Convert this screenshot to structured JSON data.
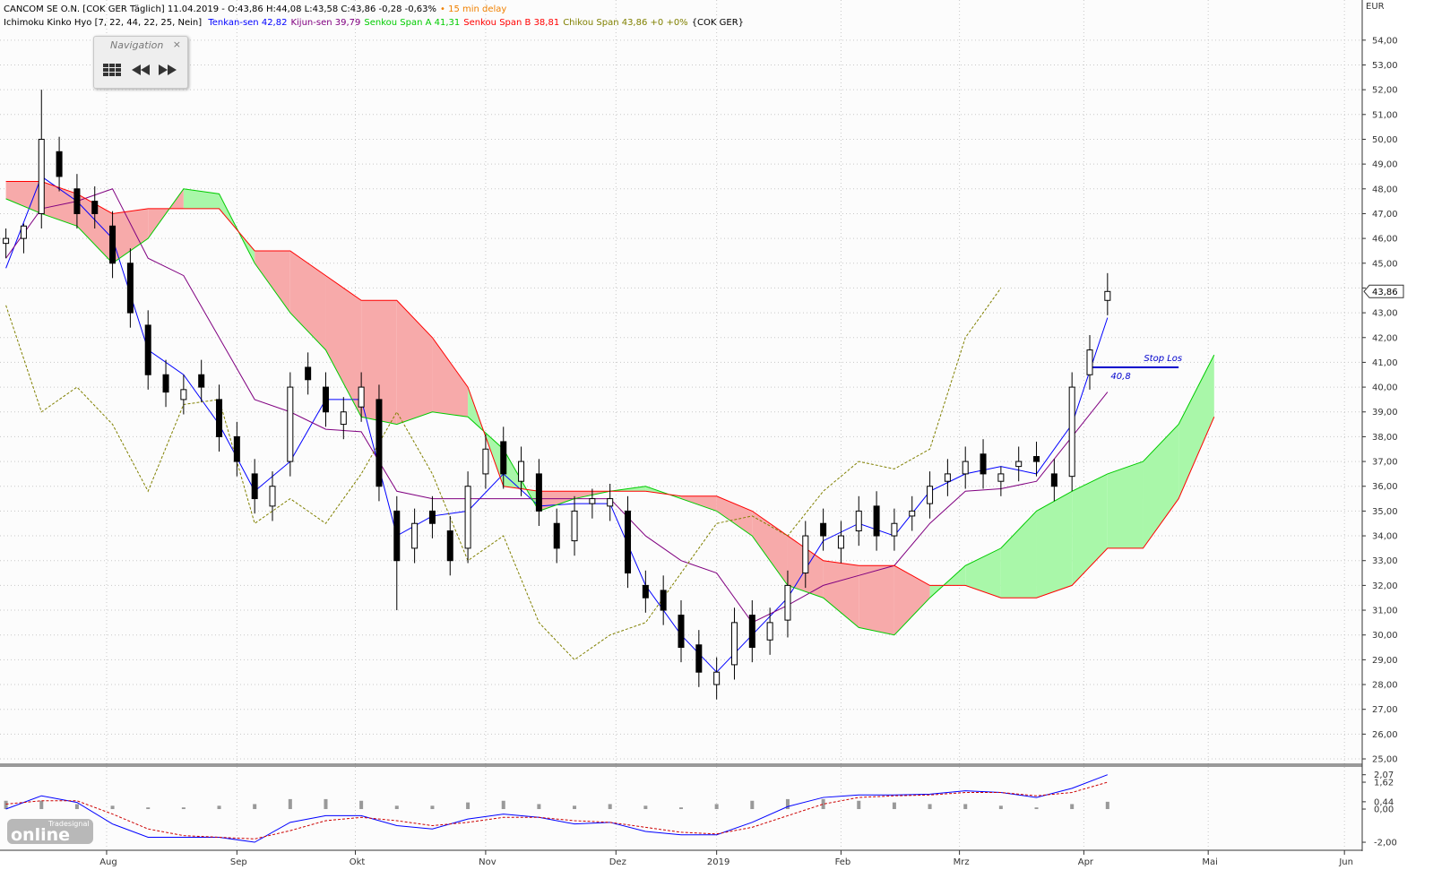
{
  "header": {
    "title": "CANCOM SE O.N. [COK GER Täglich] 11.04.2019 - O:43,86 H:44,08 L:43,58 C:43,86 -0,28 -0,63%",
    "delay": "• 15 min delay",
    "indicator": "Ichimoku Kinko Hyo [7, 22, 44, 22, 25, Nein]",
    "suffix": "{COK GER}"
  },
  "navigation": {
    "title": "Navigation"
  },
  "logo": {
    "small": "Tradesignal",
    "big": "online"
  },
  "chart_data": [
    {
      "type": "candlestick",
      "y_unit": "EUR",
      "x": [
        0,
        3,
        6,
        9,
        12,
        15,
        18,
        21,
        24,
        27,
        30,
        33,
        36,
        39,
        42,
        45,
        48,
        51,
        54,
        57,
        60,
        63,
        66,
        69,
        72,
        75,
        78,
        81,
        84,
        87,
        90,
        93,
        96,
        99,
        102,
        105,
        108,
        111,
        114,
        117,
        120,
        123,
        126,
        129,
        132,
        135,
        138,
        141,
        144,
        147,
        150,
        153,
        156,
        159,
        162,
        165,
        168,
        171,
        174,
        177,
        180,
        183,
        186
      ],
      "open": [
        45.8,
        46,
        47,
        49.5,
        48,
        47.5,
        46.5,
        45,
        42.5,
        40.5,
        39.5,
        40.5,
        39.5,
        38,
        36.5,
        35.2,
        37,
        40.8,
        40,
        38.5,
        39.2,
        39.5,
        35,
        33.5,
        35,
        34.2,
        33.5,
        36.5,
        37.8,
        36.2,
        36.5,
        34.5,
        33.8,
        35.3,
        35.2,
        35,
        32,
        31.8,
        30.8,
        29.6,
        28,
        28.8,
        30.8,
        29.8,
        30.6,
        32.5,
        34.5,
        33.5,
        34.2,
        35.2,
        34,
        34.8,
        35.3,
        36.2,
        36.5,
        37.3,
        36.2,
        36.8,
        37.2,
        36.5,
        36.4,
        40.5,
        43.5
      ],
      "high": [
        46.4,
        46.6,
        52,
        50.1,
        48.6,
        48.1,
        47.1,
        45.6,
        43.1,
        41.1,
        40.5,
        41.1,
        40.1,
        38.6,
        37.1,
        36.6,
        40.6,
        41.4,
        40.6,
        39.6,
        40.6,
        40.1,
        35.6,
        35.1,
        35.6,
        34.8,
        36.6,
        38.1,
        38.4,
        37.6,
        37.1,
        35.1,
        35.6,
        35.9,
        36.1,
        35.6,
        32.6,
        32.4,
        31.4,
        30.2,
        29.1,
        31.1,
        31.4,
        31.1,
        32.6,
        34.6,
        35.1,
        34.6,
        35.6,
        35.8,
        35.1,
        35.6,
        36.6,
        37.1,
        37.6,
        37.9,
        36.8,
        37.6,
        37.8,
        37.1,
        40.6,
        42.1,
        44.6
      ],
      "low": [
        45.2,
        45.4,
        46.4,
        47.9,
        46.4,
        46.4,
        44.4,
        42.4,
        39.9,
        39.2,
        38.9,
        39.4,
        37.4,
        36.4,
        34.9,
        34.6,
        36.4,
        39.7,
        38.4,
        37.9,
        38.6,
        35.4,
        31,
        32.9,
        33.9,
        32.4,
        32.9,
        35.9,
        35.9,
        35.6,
        34.4,
        32.9,
        33.2,
        34.7,
        34.6,
        31.9,
        30.9,
        30.4,
        28.9,
        27.9,
        27.4,
        28.2,
        28.9,
        29.2,
        29.9,
        31.9,
        33.4,
        32.9,
        33.6,
        33.4,
        33.4,
        34.2,
        34.7,
        35.6,
        35.9,
        35.9,
        35.6,
        36.2,
        36.4,
        35.4,
        35.8,
        39.9,
        42.9
      ],
      "close": [
        46,
        46.5,
        50,
        48.5,
        47,
        47,
        45,
        43,
        40.5,
        39.8,
        39.9,
        40,
        38,
        37,
        35.5,
        36,
        40,
        40.3,
        39,
        39,
        40,
        36,
        33,
        34.5,
        34.5,
        33,
        36,
        37.5,
        36.5,
        37,
        35,
        33.5,
        35,
        35.5,
        35.5,
        32.5,
        31.5,
        31,
        29.5,
        28.5,
        28.5,
        30.5,
        29.5,
        30.5,
        32,
        34,
        34,
        34,
        35,
        34,
        34.5,
        35,
        36,
        36.5,
        37,
        36.5,
        36.5,
        37,
        37,
        36,
        40,
        41.5,
        43.86
      ],
      "series": [
        {
          "name": "Tenkan-sen 42,82",
          "color": "#0000ff",
          "x": [
            0,
            6,
            12,
            18,
            24,
            30,
            36,
            42,
            48,
            54,
            60,
            66,
            72,
            78,
            84,
            90,
            96,
            102,
            108,
            114,
            120,
            126,
            132,
            138,
            144,
            150,
            156,
            162,
            168,
            174,
            180,
            186,
            192,
            198,
            204
          ],
          "values": [
            44.8,
            48.5,
            47.5,
            46,
            41.5,
            40.5,
            38.5,
            35.8,
            37,
            39.5,
            39.5,
            34,
            34.8,
            35,
            36.5,
            35.2,
            35.3,
            35.3,
            32,
            30,
            28.5,
            30,
            31.5,
            33.8,
            34.5,
            34,
            35.8,
            36.5,
            36.8,
            36.5,
            38.5,
            42.8,
            null,
            null,
            null
          ]
        },
        {
          "name": "Kijun-sen 39,79",
          "color": "#800080",
          "x": [
            0,
            6,
            12,
            18,
            24,
            30,
            36,
            42,
            48,
            54,
            60,
            66,
            72,
            78,
            84,
            90,
            96,
            102,
            108,
            114,
            120,
            126,
            132,
            138,
            144,
            150,
            156,
            162,
            168,
            174,
            180,
            186,
            192,
            198,
            204
          ],
          "values": [
            45.2,
            47.2,
            47.5,
            48,
            45.2,
            44.5,
            42,
            39.5,
            39,
            38.3,
            38.2,
            35.8,
            35.5,
            35.5,
            35.5,
            35.5,
            35.5,
            35.5,
            34,
            33,
            32.5,
            30.5,
            31.2,
            32,
            32.4,
            32.8,
            34.5,
            35.8,
            35.9,
            36.2,
            38,
            39.8,
            null,
            null,
            null
          ]
        },
        {
          "name": "Senkou Span A 41,31",
          "color": "#00cc00",
          "x": [
            0,
            6,
            12,
            18,
            24,
            30,
            36,
            42,
            48,
            54,
            60,
            66,
            72,
            78,
            84,
            90,
            96,
            102,
            108,
            114,
            120,
            126,
            132,
            138,
            144,
            150,
            156,
            162,
            168,
            174,
            180,
            186,
            192,
            198,
            204
          ],
          "values": [
            47.6,
            47,
            46.5,
            45,
            46,
            48,
            47.8,
            45,
            43,
            41.5,
            38.8,
            38.5,
            39,
            38.8,
            37.5,
            35,
            35.5,
            35.8,
            36,
            35.5,
            35,
            34,
            32,
            31.5,
            30.3,
            30,
            31.5,
            32.8,
            33.5,
            35,
            35.8,
            36.5,
            37,
            38.5,
            41.3
          ]
        },
        {
          "name": "Senkou Span B 38,81",
          "color": "#ff0000",
          "x": [
            0,
            6,
            12,
            18,
            24,
            30,
            36,
            42,
            48,
            54,
            60,
            66,
            72,
            78,
            84,
            90,
            96,
            102,
            108,
            114,
            120,
            126,
            132,
            138,
            144,
            150,
            156,
            162,
            168,
            174,
            180,
            186,
            192,
            198,
            204
          ],
          "values": [
            48.3,
            48.3,
            47.8,
            47,
            47.2,
            47.2,
            47.2,
            45.5,
            45.5,
            44.5,
            43.5,
            43.5,
            42,
            40,
            36,
            35.8,
            35.8,
            35.8,
            35.8,
            35.6,
            35.6,
            35,
            34,
            33,
            32.8,
            32.8,
            32,
            32,
            31.5,
            31.5,
            32,
            33.5,
            33.5,
            35.5,
            38.8
          ]
        },
        {
          "name": "Chikou Span 43,86 +0 +0%",
          "color": "#808000",
          "dash": true,
          "x": [
            0,
            6,
            12,
            18,
            24,
            30,
            36,
            42,
            48,
            54,
            60,
            66,
            72,
            78,
            84,
            90,
            96,
            102,
            108,
            114,
            120,
            126,
            132,
            138,
            144,
            150,
            156,
            162,
            168,
            174,
            180,
            186,
            192,
            198,
            204
          ],
          "values": [
            43.3,
            39,
            40,
            38.5,
            35.8,
            39.3,
            39.5,
            34.5,
            35.5,
            34.5,
            36.5,
            39,
            36.5,
            33,
            34,
            30.5,
            29,
            30,
            30.5,
            32.5,
            34.5,
            34.8,
            34,
            35.8,
            37,
            36.7,
            37.5,
            42,
            44,
            null,
            null,
            null,
            null,
            null,
            null
          ]
        }
      ],
      "cloud": {
        "series": [
          2,
          3
        ],
        "up_color": "#a9f7a9",
        "down_color": "#f7aaaa"
      },
      "annotation": {
        "text": "Stop Los",
        "value": 40.8,
        "label": "40,8",
        "x": [
          183,
          198
        ],
        "color": "#0000cc"
      },
      "last_price": {
        "value": 43.86,
        "label": "43,86"
      },
      "xlim": [
        -1,
        229
      ],
      "xticks": [
        {
          "value": 17,
          "label": "Aug"
        },
        {
          "value": 39,
          "label": "Sep"
        },
        {
          "value": 59,
          "label": "Okt"
        },
        {
          "value": 81,
          "label": "Nov"
        },
        {
          "value": 103,
          "label": "Dez"
        },
        {
          "value": 120,
          "label": "2019"
        },
        {
          "value": 141,
          "label": "Feb"
        },
        {
          "value": 161,
          "label": "Mrz"
        },
        {
          "value": 182,
          "label": "Apr"
        },
        {
          "value": 203,
          "label": "Mai"
        },
        {
          "value": 226,
          "label": "Jun"
        }
      ],
      "ylim": [
        24.82,
        55.62
      ],
      "yticks": [
        {
          "value": 25,
          "label": "25,00"
        },
        {
          "value": 26,
          "label": "26,00"
        },
        {
          "value": 27,
          "label": "27,00"
        },
        {
          "value": 28,
          "label": "28,00"
        },
        {
          "value": 29,
          "label": "29,00"
        },
        {
          "value": 30,
          "label": "30,00"
        },
        {
          "value": 31,
          "label": "31,00"
        },
        {
          "value": 32,
          "label": "32,00"
        },
        {
          "value": 33,
          "label": "33,00"
        },
        {
          "value": 34,
          "label": "34,00"
        },
        {
          "value": 35,
          "label": "35,00"
        },
        {
          "value": 36,
          "label": "36,00"
        },
        {
          "value": 37,
          "label": "37,00"
        },
        {
          "value": 38,
          "label": "38,00"
        },
        {
          "value": 39,
          "label": "39,00"
        },
        {
          "value": 40,
          "label": "40,00"
        },
        {
          "value": 41,
          "label": "41,00"
        },
        {
          "value": 42,
          "label": "42,00"
        },
        {
          "value": 43,
          "label": "43,00"
        },
        {
          "value": 44,
          "label": "44,00"
        },
        {
          "value": 45,
          "label": "45,00"
        },
        {
          "value": 46,
          "label": "46,00"
        },
        {
          "value": 47,
          "label": "47,00"
        },
        {
          "value": 48,
          "label": "48,00"
        },
        {
          "value": 49,
          "label": "49,00"
        },
        {
          "value": 50,
          "label": "50,00"
        },
        {
          "value": 51,
          "label": "51,00"
        },
        {
          "value": 52,
          "label": "52,00"
        },
        {
          "value": 53,
          "label": "53,00"
        },
        {
          "value": 54,
          "label": "54,00"
        }
      ],
      "grid": true
    },
    {
      "type": "line",
      "x": [
        0,
        6,
        12,
        18,
        24,
        30,
        36,
        42,
        48,
        54,
        60,
        66,
        72,
        78,
        84,
        90,
        96,
        102,
        108,
        114,
        120,
        126,
        132,
        138,
        144,
        150,
        156,
        162,
        168,
        174,
        180,
        186
      ],
      "histogram": {
        "color": "#999999",
        "values": [
          0.5,
          0.5,
          0.3,
          0.2,
          0.1,
          0.1,
          0.2,
          0.3,
          0.6,
          0.6,
          0.5,
          0.2,
          0.2,
          0.4,
          0.5,
          0.3,
          0.2,
          0.3,
          0.2,
          0.1,
          0.3,
          0.5,
          0.6,
          0.6,
          0.5,
          0.4,
          0.3,
          0.3,
          0.2,
          0.1,
          0.3,
          0.44
        ]
      },
      "series": [
        {
          "color": "#0000ff",
          "values": [
            0,
            0.8,
            0.4,
            -0.9,
            -1.7,
            -1.7,
            -1.7,
            -2.0,
            -0.8,
            -0.4,
            -0.4,
            -1.0,
            -1.2,
            -0.6,
            -0.3,
            -0.5,
            -0.9,
            -0.8,
            -1.35,
            -1.55,
            -1.55,
            -0.8,
            0.15,
            0.7,
            0.85,
            0.85,
            0.9,
            1.1,
            1.0,
            0.7,
            1.25,
            2.07
          ]
        },
        {
          "color": "#cc0000",
          "dash": true,
          "values": [
            0.3,
            0.5,
            0.5,
            -0.3,
            -1.2,
            -1.6,
            -1.7,
            -1.8,
            -1.3,
            -0.7,
            -0.5,
            -0.7,
            -1.0,
            -0.8,
            -0.5,
            -0.5,
            -0.7,
            -0.8,
            -1.1,
            -1.4,
            -1.5,
            -1.1,
            -0.4,
            0.3,
            0.7,
            0.8,
            0.85,
            1.0,
            1.0,
            0.8,
            1.0,
            1.62
          ]
        }
      ],
      "xlim": [
        -1,
        229
      ],
      "ylim": [
        -2.43,
        2.54
      ],
      "yticks": [
        {
          "value": 2.07,
          "label": "2,07"
        },
        {
          "value": 1.62,
          "label": "1,62"
        },
        {
          "value": 0.44,
          "label": "0,44"
        },
        {
          "value": 0,
          "label": "0,00"
        },
        {
          "value": -2,
          "label": "-2,00"
        }
      ]
    }
  ]
}
